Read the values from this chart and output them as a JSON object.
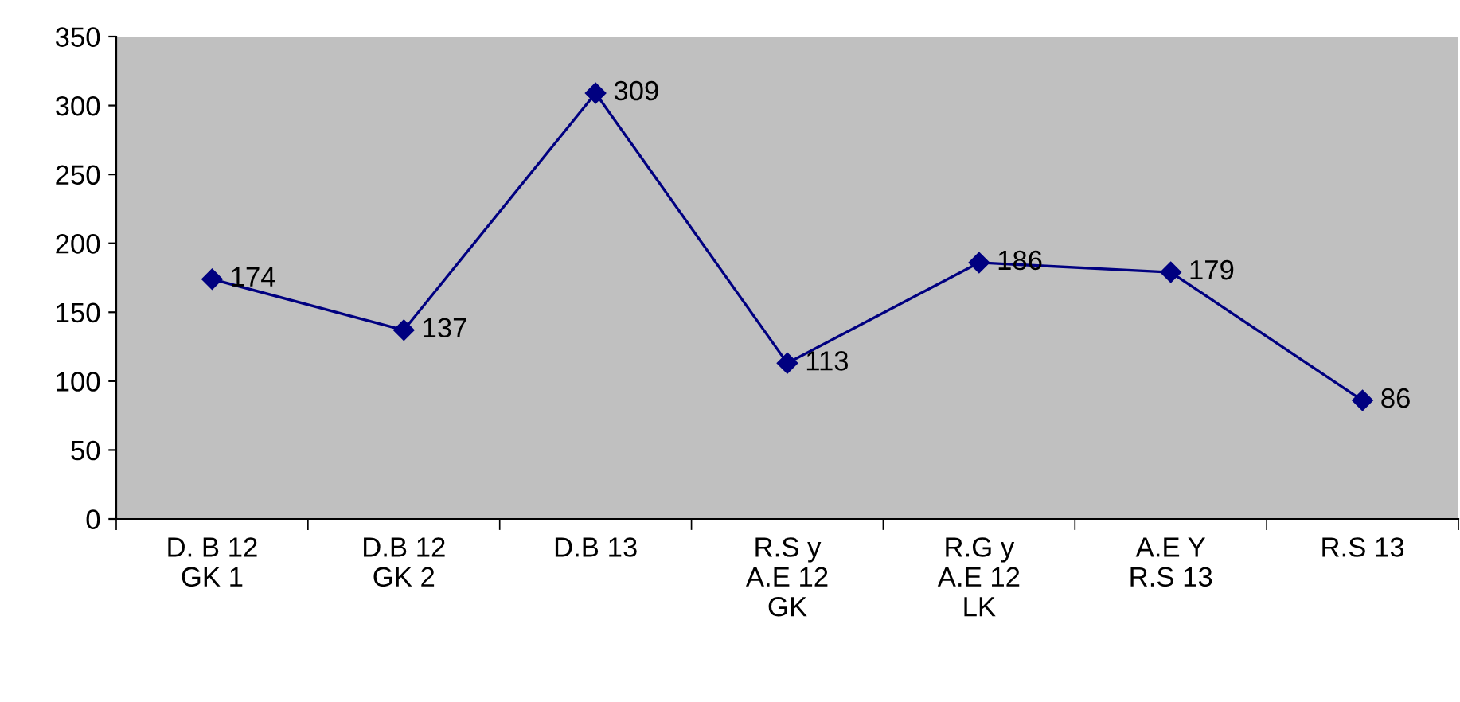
{
  "chart_data": {
    "type": "line",
    "categories": [
      "D. B 12\nGK 1",
      "D.B 12\nGK 2",
      "D.B 13",
      "R.S y\nA.E 12\nGK",
      "R.G y\nA.E 12\nLK",
      "A.E Y\nR.S 13",
      "R.S 13"
    ],
    "series": [
      {
        "color": "#000080",
        "values": [
          174,
          137,
          309,
          113,
          186,
          179,
          86
        ]
      }
    ],
    "ylim": [
      0,
      350
    ],
    "yticks": [
      0,
      50,
      100,
      150,
      200,
      250,
      300,
      350
    ],
    "marker": "diamond",
    "line_style": "solid",
    "data_labels": true,
    "grid": false,
    "legend": false
  }
}
